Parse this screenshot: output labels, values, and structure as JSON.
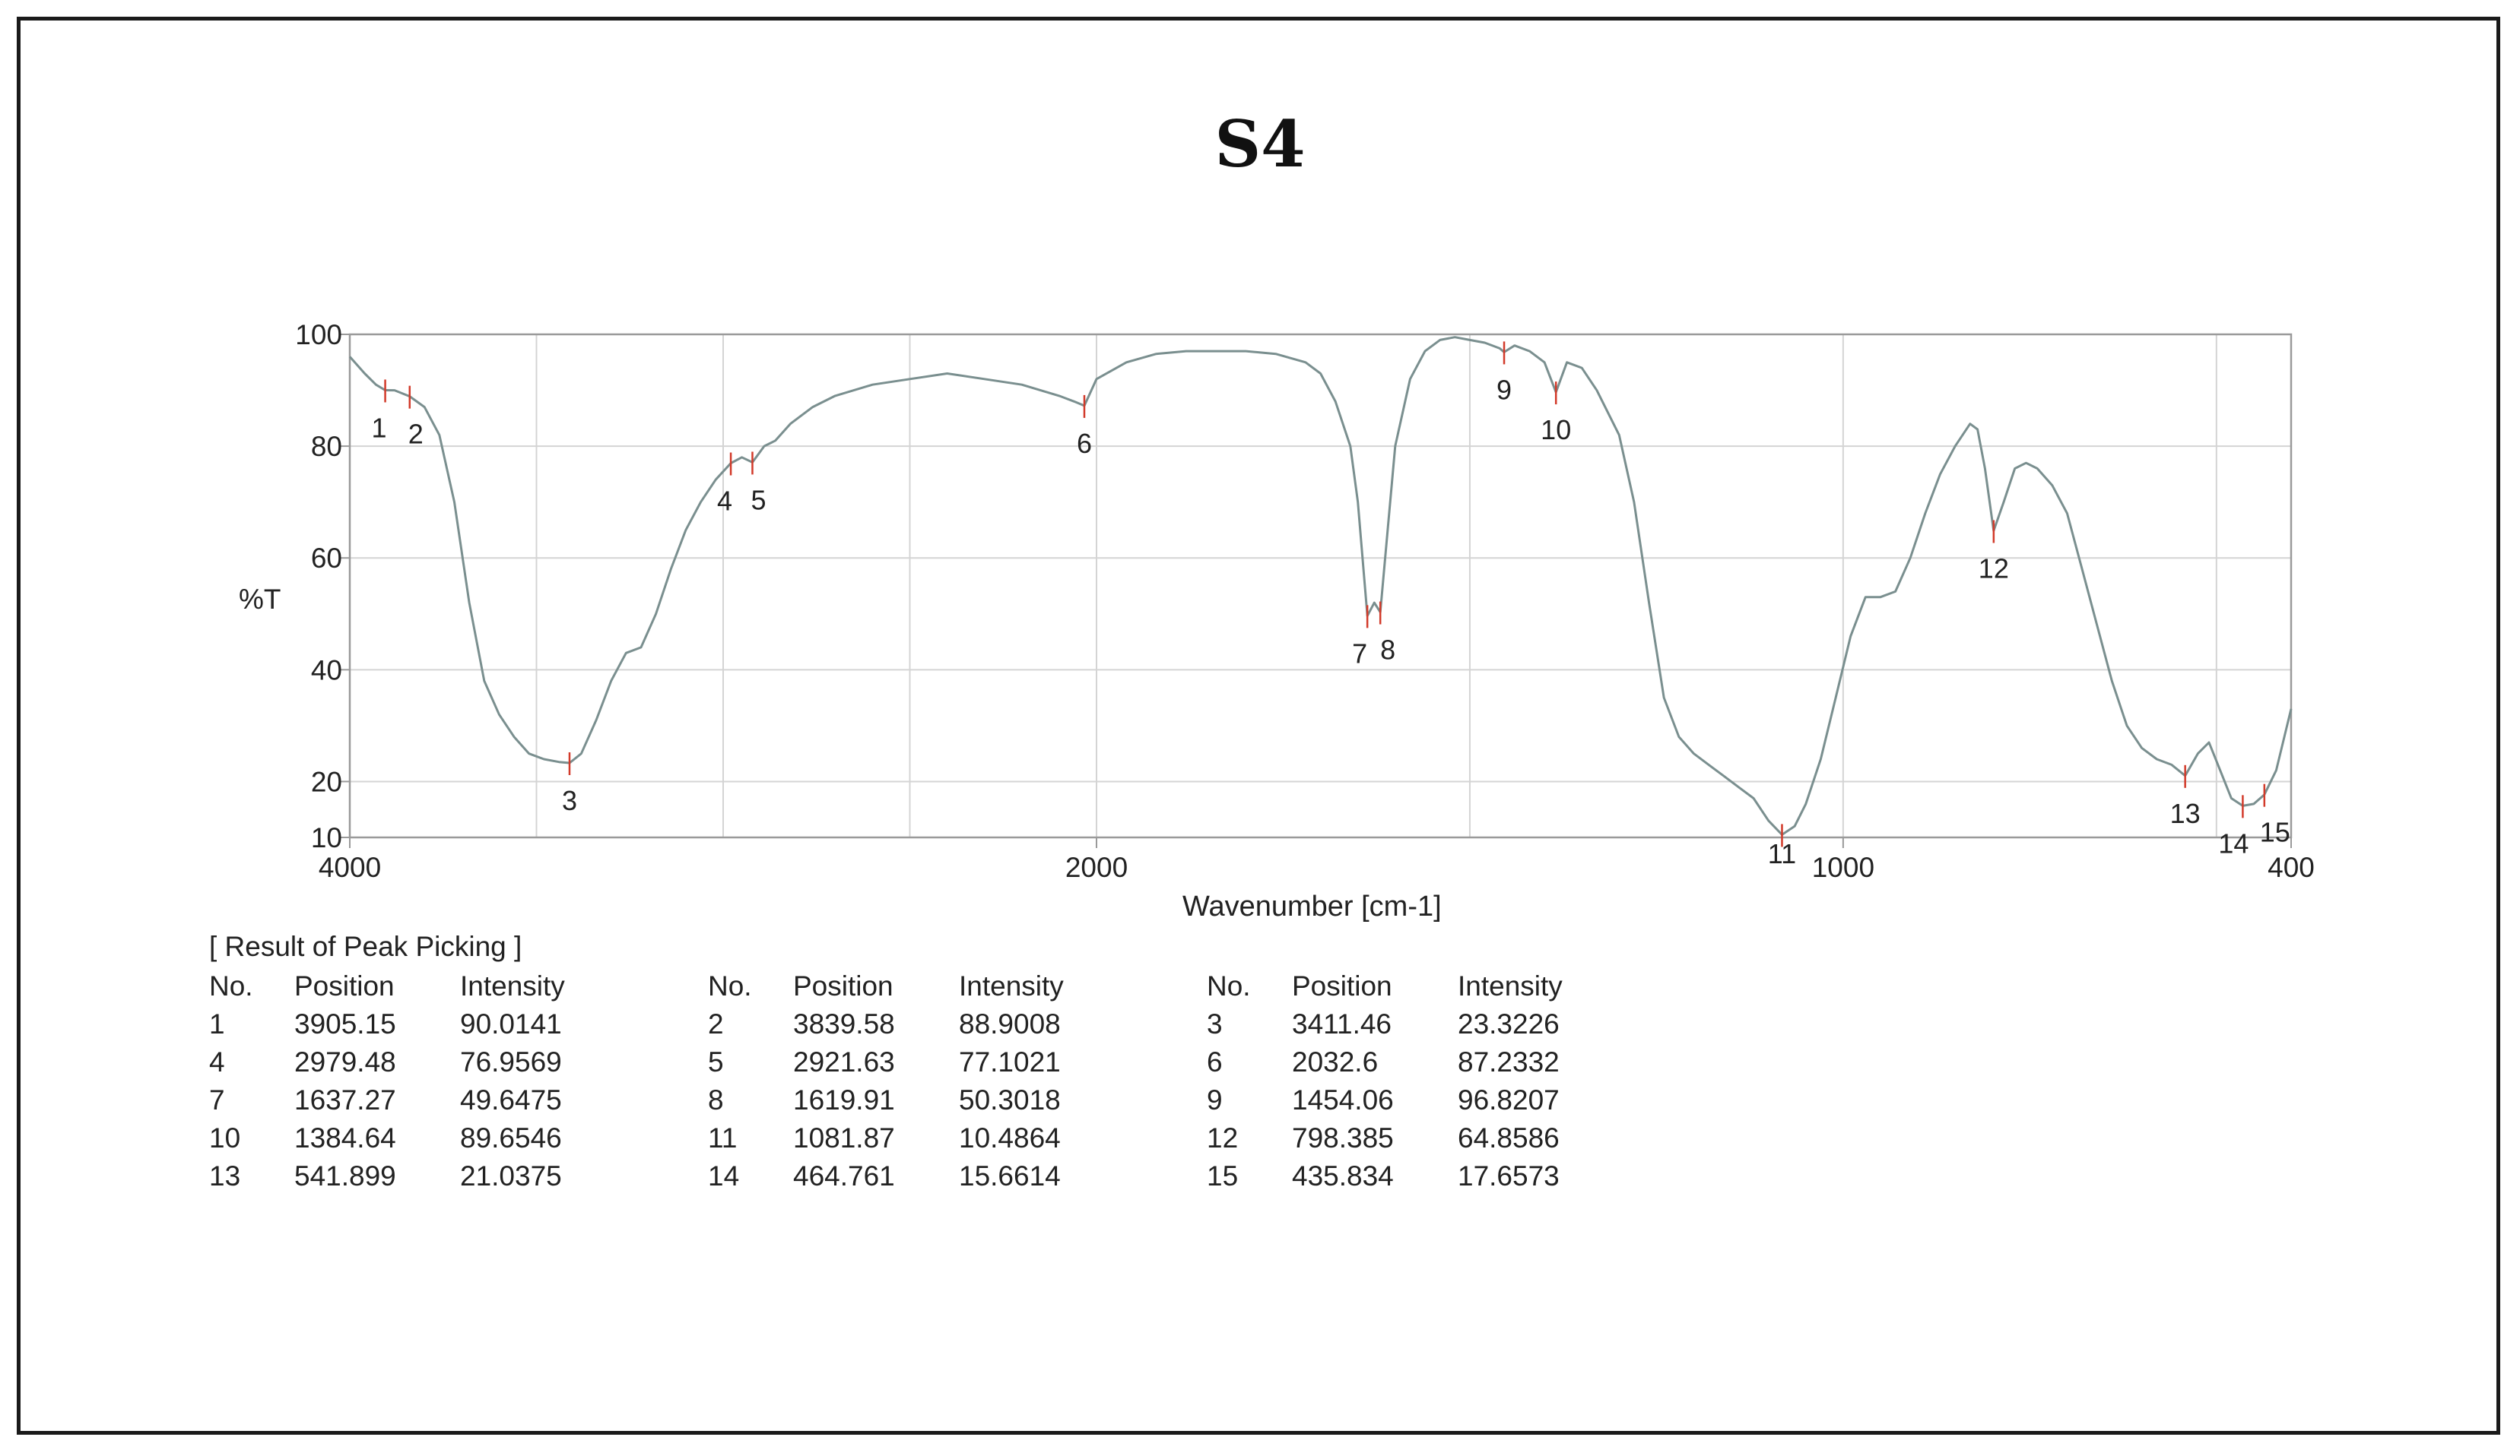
{
  "title": "S4",
  "chart_data": {
    "type": "line",
    "title": "S4",
    "xlabel": "Wavenumber [cm-1]",
    "ylabel": "%T",
    "xlim": [
      4000,
      400
    ],
    "ylim": [
      10,
      100
    ],
    "x_ticks": [
      4000,
      2000,
      1000,
      400
    ],
    "y_ticks": [
      10,
      20,
      40,
      60,
      80,
      100
    ],
    "grid": true,
    "x_breaks": "axis is not linear: 4000–2000 and 2000–400 segments drawn at different scales",
    "series": [
      {
        "x": [
          4000,
          3960,
          3930,
          3905.15,
          3880,
          3839.58,
          3800,
          3760,
          3720,
          3680,
          3640,
          3600,
          3560,
          3520,
          3480,
          3440,
          3411.46,
          3380,
          3340,
          3300,
          3260,
          3220,
          3180,
          3140,
          3100,
          3060,
          3020,
          2979.48,
          2950,
          2921.63,
          2890,
          2860,
          2820,
          2760,
          2700,
          2600,
          2500,
          2400,
          2300,
          2200,
          2100,
          2060,
          2032.6,
          2000,
          1960,
          1920,
          1880,
          1840,
          1800,
          1760,
          1720,
          1700,
          1680,
          1660,
          1650,
          1637.27,
          1628,
          1619.91,
          1610,
          1600,
          1580,
          1560,
          1540,
          1520,
          1500,
          1480,
          1460,
          1454.06,
          1440,
          1420,
          1400,
          1384.64,
          1370,
          1350,
          1330,
          1300,
          1280,
          1260,
          1240,
          1220,
          1200,
          1180,
          1160,
          1140,
          1120,
          1100,
          1081.87,
          1065,
          1050,
          1030,
          1010,
          990,
          970,
          950,
          930,
          910,
          890,
          870,
          850,
          830,
          820,
          810,
          798.385,
          785,
          770,
          755,
          740,
          720,
          700,
          680,
          660,
          640,
          620,
          600,
          580,
          560,
          541.899,
          525,
          510,
          495,
          480,
          464.761,
          450,
          435.834,
          420,
          400
        ],
        "y": [
          96,
          93,
          91,
          90.0141,
          90,
          88.9008,
          87,
          82,
          70,
          52,
          38,
          32,
          28,
          25,
          24,
          23.5,
          23.3226,
          25,
          31,
          38,
          43,
          44,
          50,
          58,
          65,
          70,
          74,
          76.9569,
          78,
          77.1021,
          80,
          81,
          84,
          87,
          89,
          91,
          92,
          93,
          92,
          91,
          89,
          88,
          87.2332,
          92,
          95,
          96.5,
          97,
          97,
          97,
          96.5,
          95,
          93,
          88,
          80,
          70,
          49.6475,
          52,
          50.3018,
          65,
          80,
          92,
          97,
          99,
          99.5,
          99,
          98.5,
          97.5,
          96.8207,
          98,
          97,
          95,
          89.6546,
          95,
          94,
          90,
          82,
          70,
          52,
          35,
          28,
          25,
          23,
          21,
          19,
          17,
          13,
          10.4864,
          12,
          16,
          24,
          35,
          46,
          53,
          53,
          54,
          60,
          68,
          75,
          80,
          84,
          83,
          76,
          64.8586,
          70,
          76,
          77,
          76,
          73,
          68,
          58,
          48,
          38,
          30,
          26,
          24,
          23,
          21.0375,
          25,
          27,
          22,
          17,
          15.6614,
          16,
          17.6573,
          22,
          33
        ]
      }
    ],
    "peak_labels": [
      {
        "label": "1",
        "x": 3905.15,
        "y": 90.0141
      },
      {
        "label": "2",
        "x": 3839.58,
        "y": 88.9008
      },
      {
        "label": "3",
        "x": 3411.46,
        "y": 23.3226
      },
      {
        "label": "4",
        "x": 2979.48,
        "y": 76.9569
      },
      {
        "label": "5",
        "x": 2921.63,
        "y": 77.1021
      },
      {
        "label": "6",
        "x": 2032.6,
        "y": 87.2332
      },
      {
        "label": "7",
        "x": 1637.27,
        "y": 49.6475
      },
      {
        "label": "8",
        "x": 1619.91,
        "y": 50.3018
      },
      {
        "label": "9",
        "x": 1454.06,
        "y": 96.8207
      },
      {
        "label": "10",
        "x": 1384.64,
        "y": 89.6546
      },
      {
        "label": "11",
        "x": 1081.87,
        "y": 10.4864
      },
      {
        "label": "12",
        "x": 798.385,
        "y": 64.8586
      },
      {
        "label": "13",
        "x": 541.899,
        "y": 21.0375
      },
      {
        "label": "14",
        "x": 464.761,
        "y": 15.6614
      },
      {
        "label": "15",
        "x": 435.834,
        "y": 17.6573
      }
    ]
  },
  "peak_table": {
    "title": "[ Result of Peak Picking ]",
    "headers": [
      "No.",
      "Position",
      "Intensity"
    ],
    "rows": [
      [
        "1",
        "3905.15",
        "90.0141"
      ],
      [
        "2",
        "3839.58",
        "88.9008"
      ],
      [
        "3",
        "3411.46",
        "23.3226"
      ],
      [
        "4",
        "2979.48",
        "76.9569"
      ],
      [
        "5",
        "2921.63",
        "77.1021"
      ],
      [
        "6",
        "2032.6",
        "87.2332"
      ],
      [
        "7",
        "1637.27",
        "49.6475"
      ],
      [
        "8",
        "1619.91",
        "50.3018"
      ],
      [
        "9",
        "1454.06",
        "96.8207"
      ],
      [
        "10",
        "1384.64",
        "89.6546"
      ],
      [
        "11",
        "1081.87",
        "10.4864"
      ],
      [
        "12",
        "798.385",
        "64.8586"
      ],
      [
        "13",
        "541.899",
        "21.0375"
      ],
      [
        "14",
        "464.761",
        "15.6614"
      ],
      [
        "15",
        "435.834",
        "17.6573"
      ]
    ]
  },
  "colors": {
    "curve": "#7a8f8f",
    "grid": "#d4d4d4",
    "axis": "#9a9a9a",
    "marker": "#d23a2a",
    "text": "#222222"
  }
}
